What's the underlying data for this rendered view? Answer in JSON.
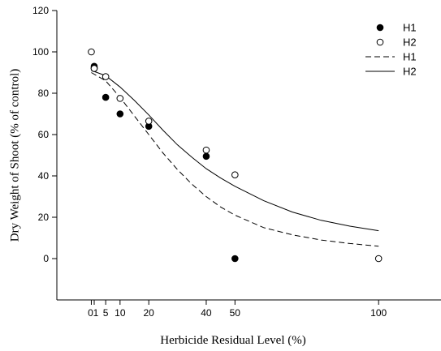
{
  "chart_data": {
    "type": "scatter",
    "title": "",
    "xlabel": "Herbicide Residual Level (%)",
    "ylabel": "Dry Weight of Shoot (% of control)",
    "xlim": [
      -12,
      122
    ],
    "ylim": [
      -20,
      120
    ],
    "x_ticks": [
      0,
      1,
      5,
      10,
      20,
      40,
      50,
      100
    ],
    "x_tick_labels": [
      "0",
      "1",
      "5",
      "10",
      "20",
      "40",
      "50",
      "100"
    ],
    "y_ticks": [
      0,
      20,
      40,
      60,
      80,
      100,
      120
    ],
    "y_tick_labels": [
      "0",
      "20",
      "40",
      "60",
      "80",
      "100",
      "120"
    ],
    "legend_position": "top-right",
    "grid": false,
    "series": [
      {
        "name": "H1",
        "kind": "points",
        "marker": "filled-circle",
        "color": "#000000",
        "points": [
          [
            1,
            93
          ],
          [
            1,
            92
          ],
          [
            5,
            78
          ],
          [
            10,
            70
          ],
          [
            20,
            64
          ],
          [
            40,
            49.5
          ],
          [
            50,
            0
          ]
        ]
      },
      {
        "name": "H2",
        "kind": "points",
        "marker": "open-circle",
        "color": "#000000",
        "points": [
          [
            0,
            100
          ],
          [
            1,
            92
          ],
          [
            5,
            88
          ],
          [
            10,
            77.5
          ],
          [
            20,
            66.5
          ],
          [
            40,
            52.5
          ],
          [
            50,
            40.5
          ],
          [
            100,
            0
          ]
        ]
      },
      {
        "name": "H1",
        "kind": "line",
        "style": "dashed",
        "color": "#000000",
        "points": [
          [
            0,
            90
          ],
          [
            5,
            86
          ],
          [
            10,
            78
          ],
          [
            15,
            69
          ],
          [
            20,
            60
          ],
          [
            25,
            51
          ],
          [
            30,
            43
          ],
          [
            35,
            36
          ],
          [
            40,
            30
          ],
          [
            45,
            25
          ],
          [
            50,
            21
          ],
          [
            60,
            15
          ],
          [
            70,
            11.5
          ],
          [
            80,
            9
          ],
          [
            90,
            7.3
          ],
          [
            100,
            6
          ]
        ]
      },
      {
        "name": "H2",
        "kind": "line",
        "style": "solid",
        "color": "#000000",
        "points": [
          [
            0,
            91
          ],
          [
            5,
            88.5
          ],
          [
            10,
            83
          ],
          [
            15,
            76.5
          ],
          [
            20,
            69.5
          ],
          [
            25,
            62
          ],
          [
            30,
            55
          ],
          [
            35,
            49
          ],
          [
            40,
            43.5
          ],
          [
            45,
            39
          ],
          [
            50,
            35
          ],
          [
            60,
            28
          ],
          [
            70,
            22.5
          ],
          [
            80,
            18.5
          ],
          [
            90,
            15.7
          ],
          [
            100,
            13.5
          ]
        ]
      }
    ]
  }
}
